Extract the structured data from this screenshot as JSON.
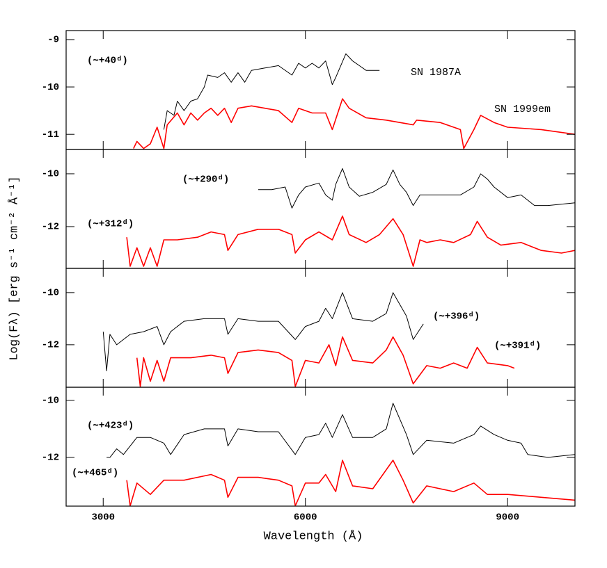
{
  "chart_data": [
    {
      "type": "line",
      "ylabel": "Log(Fλ) [erg s⁻¹ cm⁻² Å⁻¹]",
      "annotation": "(∼+40ᵈ)",
      "xlim": [
        2450,
        10000
      ],
      "xticks": [
        3000,
        6000,
        9000
      ],
      "ylim": [
        -11.32,
        -8.81
      ],
      "yticks": [
        -11,
        -10,
        -9
      ],
      "series": [
        {
          "name": "SN 1987A",
          "color": "#000000",
          "x": [
            3900,
            3950,
            4050,
            4100,
            4200,
            4300,
            4400,
            4500,
            4550,
            4700,
            4800,
            4900,
            5000,
            5100,
            5200,
            5400,
            5600,
            5800,
            5900,
            6000,
            6100,
            6200,
            6300,
            6400,
            6450,
            6600,
            6700,
            6800,
            6900,
            7100
          ],
          "values": [
            -10.9,
            -10.5,
            -10.6,
            -10.3,
            -10.5,
            -10.3,
            -10.25,
            -10.0,
            -9.75,
            -9.8,
            -9.7,
            -9.9,
            -9.7,
            -9.9,
            -9.65,
            -9.6,
            -9.55,
            -9.75,
            -9.5,
            -9.6,
            -9.5,
            -9.6,
            -9.45,
            -9.95,
            -9.8,
            -9.3,
            -9.45,
            -9.55,
            -9.65,
            -9.65
          ]
        },
        {
          "name": "SN 1999em",
          "color": "#ff0000",
          "x": [
            3450,
            3500,
            3600,
            3700,
            3800,
            3900,
            3950,
            4100,
            4200,
            4300,
            4400,
            4500,
            4600,
            4700,
            4800,
            4900,
            5000,
            5200,
            5400,
            5600,
            5800,
            5900,
            6100,
            6300,
            6400,
            6550,
            6650,
            6900,
            7200,
            7600,
            7650,
            8000,
            8300,
            8350,
            8500,
            8600,
            8800,
            9000,
            9500,
            10000
          ],
          "values": [
            -11.3,
            -11.15,
            -11.3,
            -11.2,
            -10.85,
            -11.3,
            -10.8,
            -10.55,
            -10.8,
            -10.55,
            -10.7,
            -10.55,
            -10.45,
            -10.6,
            -10.45,
            -10.75,
            -10.45,
            -10.4,
            -10.45,
            -10.5,
            -10.75,
            -10.45,
            -10.55,
            -10.55,
            -10.9,
            -10.25,
            -10.45,
            -10.65,
            -10.7,
            -10.8,
            -10.7,
            -10.75,
            -10.9,
            -11.3,
            -10.9,
            -10.6,
            -10.75,
            -10.85,
            -10.9,
            -11.0
          ]
        }
      ]
    },
    {
      "type": "line",
      "xlim": [
        2450,
        10000
      ],
      "xticks": [
        3000,
        6000,
        9000
      ],
      "ylim": [
        -13.58,
        -9.08
      ],
      "yticks": [
        -12,
        -10
      ],
      "series": [
        {
          "label": "(∼+290ᵈ)",
          "color": "#000000",
          "x": [
            5300,
            5500,
            5700,
            5800,
            5900,
            6000,
            6200,
            6300,
            6400,
            6450,
            6550,
            6650,
            6800,
            7000,
            7200,
            7300,
            7400,
            7500,
            7600,
            7700,
            8000,
            8300,
            8500,
            8600,
            8700,
            8800,
            9000,
            9200,
            9400,
            9600,
            10000
          ],
          "values": [
            -10.6,
            -10.6,
            -10.5,
            -11.3,
            -10.8,
            -10.5,
            -10.35,
            -10.8,
            -11.0,
            -10.4,
            -9.8,
            -10.5,
            -10.85,
            -10.7,
            -10.4,
            -9.85,
            -10.4,
            -10.7,
            -11.2,
            -10.8,
            -10.8,
            -10.8,
            -10.5,
            -10.0,
            -10.2,
            -10.5,
            -10.9,
            -10.8,
            -11.2,
            -11.2,
            -11.1
          ]
        },
        {
          "label": "(∼+312ᵈ)",
          "color": "#ff0000",
          "x": [
            3350,
            3400,
            3500,
            3600,
            3700,
            3800,
            3900,
            4100,
            4400,
            4600,
            4800,
            4850,
            5000,
            5300,
            5600,
            5800,
            5850,
            6000,
            6200,
            6400,
            6550,
            6650,
            6900,
            7100,
            7300,
            7450,
            7600,
            7700,
            7800,
            8000,
            8200,
            8450,
            8550,
            8700,
            8900,
            9200,
            9500,
            9800,
            10000
          ],
          "values": [
            -12.4,
            -13.5,
            -12.8,
            -13.5,
            -12.8,
            -13.5,
            -12.5,
            -12.5,
            -12.4,
            -12.2,
            -12.3,
            -12.9,
            -12.3,
            -12.1,
            -12.1,
            -12.3,
            -13.0,
            -12.5,
            -12.2,
            -12.5,
            -11.6,
            -12.3,
            -12.6,
            -12.3,
            -11.7,
            -12.3,
            -13.5,
            -12.5,
            -12.6,
            -12.5,
            -12.6,
            -12.3,
            -11.8,
            -12.4,
            -12.7,
            -12.6,
            -12.9,
            -13.0,
            -12.9
          ]
        }
      ]
    },
    {
      "type": "line",
      "xlim": [
        2450,
        10000
      ],
      "xticks": [
        3000,
        6000,
        9000
      ],
      "ylim": [
        -13.63,
        -9.07
      ],
      "yticks": [
        -12,
        -10
      ],
      "series": [
        {
          "label": "(∼+396ᵈ)",
          "color": "#000000",
          "x": [
            3000,
            3050,
            3100,
            3200,
            3400,
            3600,
            3800,
            3900,
            4000,
            4200,
            4500,
            4800,
            4850,
            5000,
            5300,
            5600,
            5850,
            6000,
            6200,
            6300,
            6400,
            6550,
            6700,
            7000,
            7200,
            7300,
            7500,
            7600,
            7750
          ],
          "values": [
            -11.5,
            -13.0,
            -11.6,
            -12.0,
            -11.6,
            -11.5,
            -11.3,
            -12.0,
            -11.5,
            -11.1,
            -11.0,
            -11.0,
            -11.6,
            -11.0,
            -11.1,
            -11.1,
            -11.8,
            -11.3,
            -11.1,
            -10.6,
            -11.0,
            -10.0,
            -11.0,
            -11.1,
            -10.8,
            -10.0,
            -10.9,
            -11.8,
            -11.2
          ]
        },
        {
          "label": "(∼+391ᵈ)",
          "color": "#ff0000",
          "x": [
            3500,
            3550,
            3600,
            3700,
            3800,
            3900,
            4000,
            4300,
            4600,
            4800,
            4850,
            5000,
            5300,
            5600,
            5800,
            5850,
            6000,
            6200,
            6350,
            6450,
            6550,
            6700,
            7000,
            7200,
            7300,
            7450,
            7600,
            7800,
            8000,
            8200,
            8400,
            8550,
            8700,
            9000,
            9100
          ],
          "values": [
            -12.5,
            -13.6,
            -12.5,
            -13.4,
            -12.6,
            -13.4,
            -12.5,
            -12.5,
            -12.4,
            -12.5,
            -13.1,
            -12.3,
            -12.2,
            -12.3,
            -12.6,
            -13.6,
            -12.6,
            -12.7,
            -12.0,
            -12.8,
            -11.7,
            -12.6,
            -12.7,
            -12.2,
            -11.7,
            -12.4,
            -13.5,
            -12.8,
            -12.9,
            -12.7,
            -12.9,
            -12.1,
            -12.7,
            -12.8,
            -12.9
          ]
        }
      ]
    },
    {
      "type": "line",
      "xlabel": "Wavelength (Å)",
      "xlim": [
        2450,
        10000
      ],
      "xticks": [
        3000,
        6000,
        9000
      ],
      "ylim": [
        -13.71,
        -9.54
      ],
      "yticks": [
        -12,
        -10
      ],
      "series": [
        {
          "label": "(∼+423ᵈ)",
          "color": "#000000",
          "x": [
            3050,
            3100,
            3200,
            3300,
            3500,
            3700,
            3900,
            4000,
            4200,
            4500,
            4800,
            4850,
            5000,
            5300,
            5600,
            5850,
            6000,
            6200,
            6300,
            6400,
            6550,
            6700,
            7000,
            7200,
            7300,
            7500,
            7600,
            7800,
            8200,
            8500,
            8600,
            8800,
            9000,
            9200,
            9300,
            9600,
            10000
          ],
          "values": [
            -12.0,
            -12.0,
            -11.7,
            -11.9,
            -11.3,
            -11.3,
            -11.5,
            -11.9,
            -11.2,
            -11.0,
            -11.0,
            -11.6,
            -11.0,
            -11.1,
            -11.1,
            -11.9,
            -11.3,
            -11.2,
            -10.8,
            -11.3,
            -10.5,
            -11.3,
            -11.3,
            -11.0,
            -10.1,
            -11.2,
            -11.9,
            -11.4,
            -11.5,
            -11.2,
            -10.9,
            -11.2,
            -11.4,
            -11.5,
            -11.9,
            -12.0,
            -11.9
          ]
        },
        {
          "label": "(∼+465ᵈ)",
          "color": "#ff0000",
          "x": [
            3350,
            3400,
            3500,
            3700,
            3900,
            4200,
            4600,
            4800,
            4850,
            5000,
            5300,
            5600,
            5800,
            5850,
            6000,
            6200,
            6300,
            6450,
            6550,
            6700,
            7000,
            7150,
            7300,
            7450,
            7600,
            7800,
            8200,
            8500,
            8700,
            9000,
            9500,
            10000
          ],
          "values": [
            -12.8,
            -13.7,
            -12.9,
            -13.3,
            -12.8,
            -12.8,
            -12.6,
            -12.8,
            -13.4,
            -12.7,
            -12.7,
            -12.8,
            -13.0,
            -13.7,
            -12.9,
            -12.9,
            -12.6,
            -13.2,
            -12.1,
            -13.0,
            -13.1,
            -12.6,
            -12.1,
            -12.8,
            -13.6,
            -13.0,
            -13.2,
            -12.9,
            -13.3,
            -13.3,
            -13.4,
            -13.5
          ]
        }
      ]
    }
  ]
}
